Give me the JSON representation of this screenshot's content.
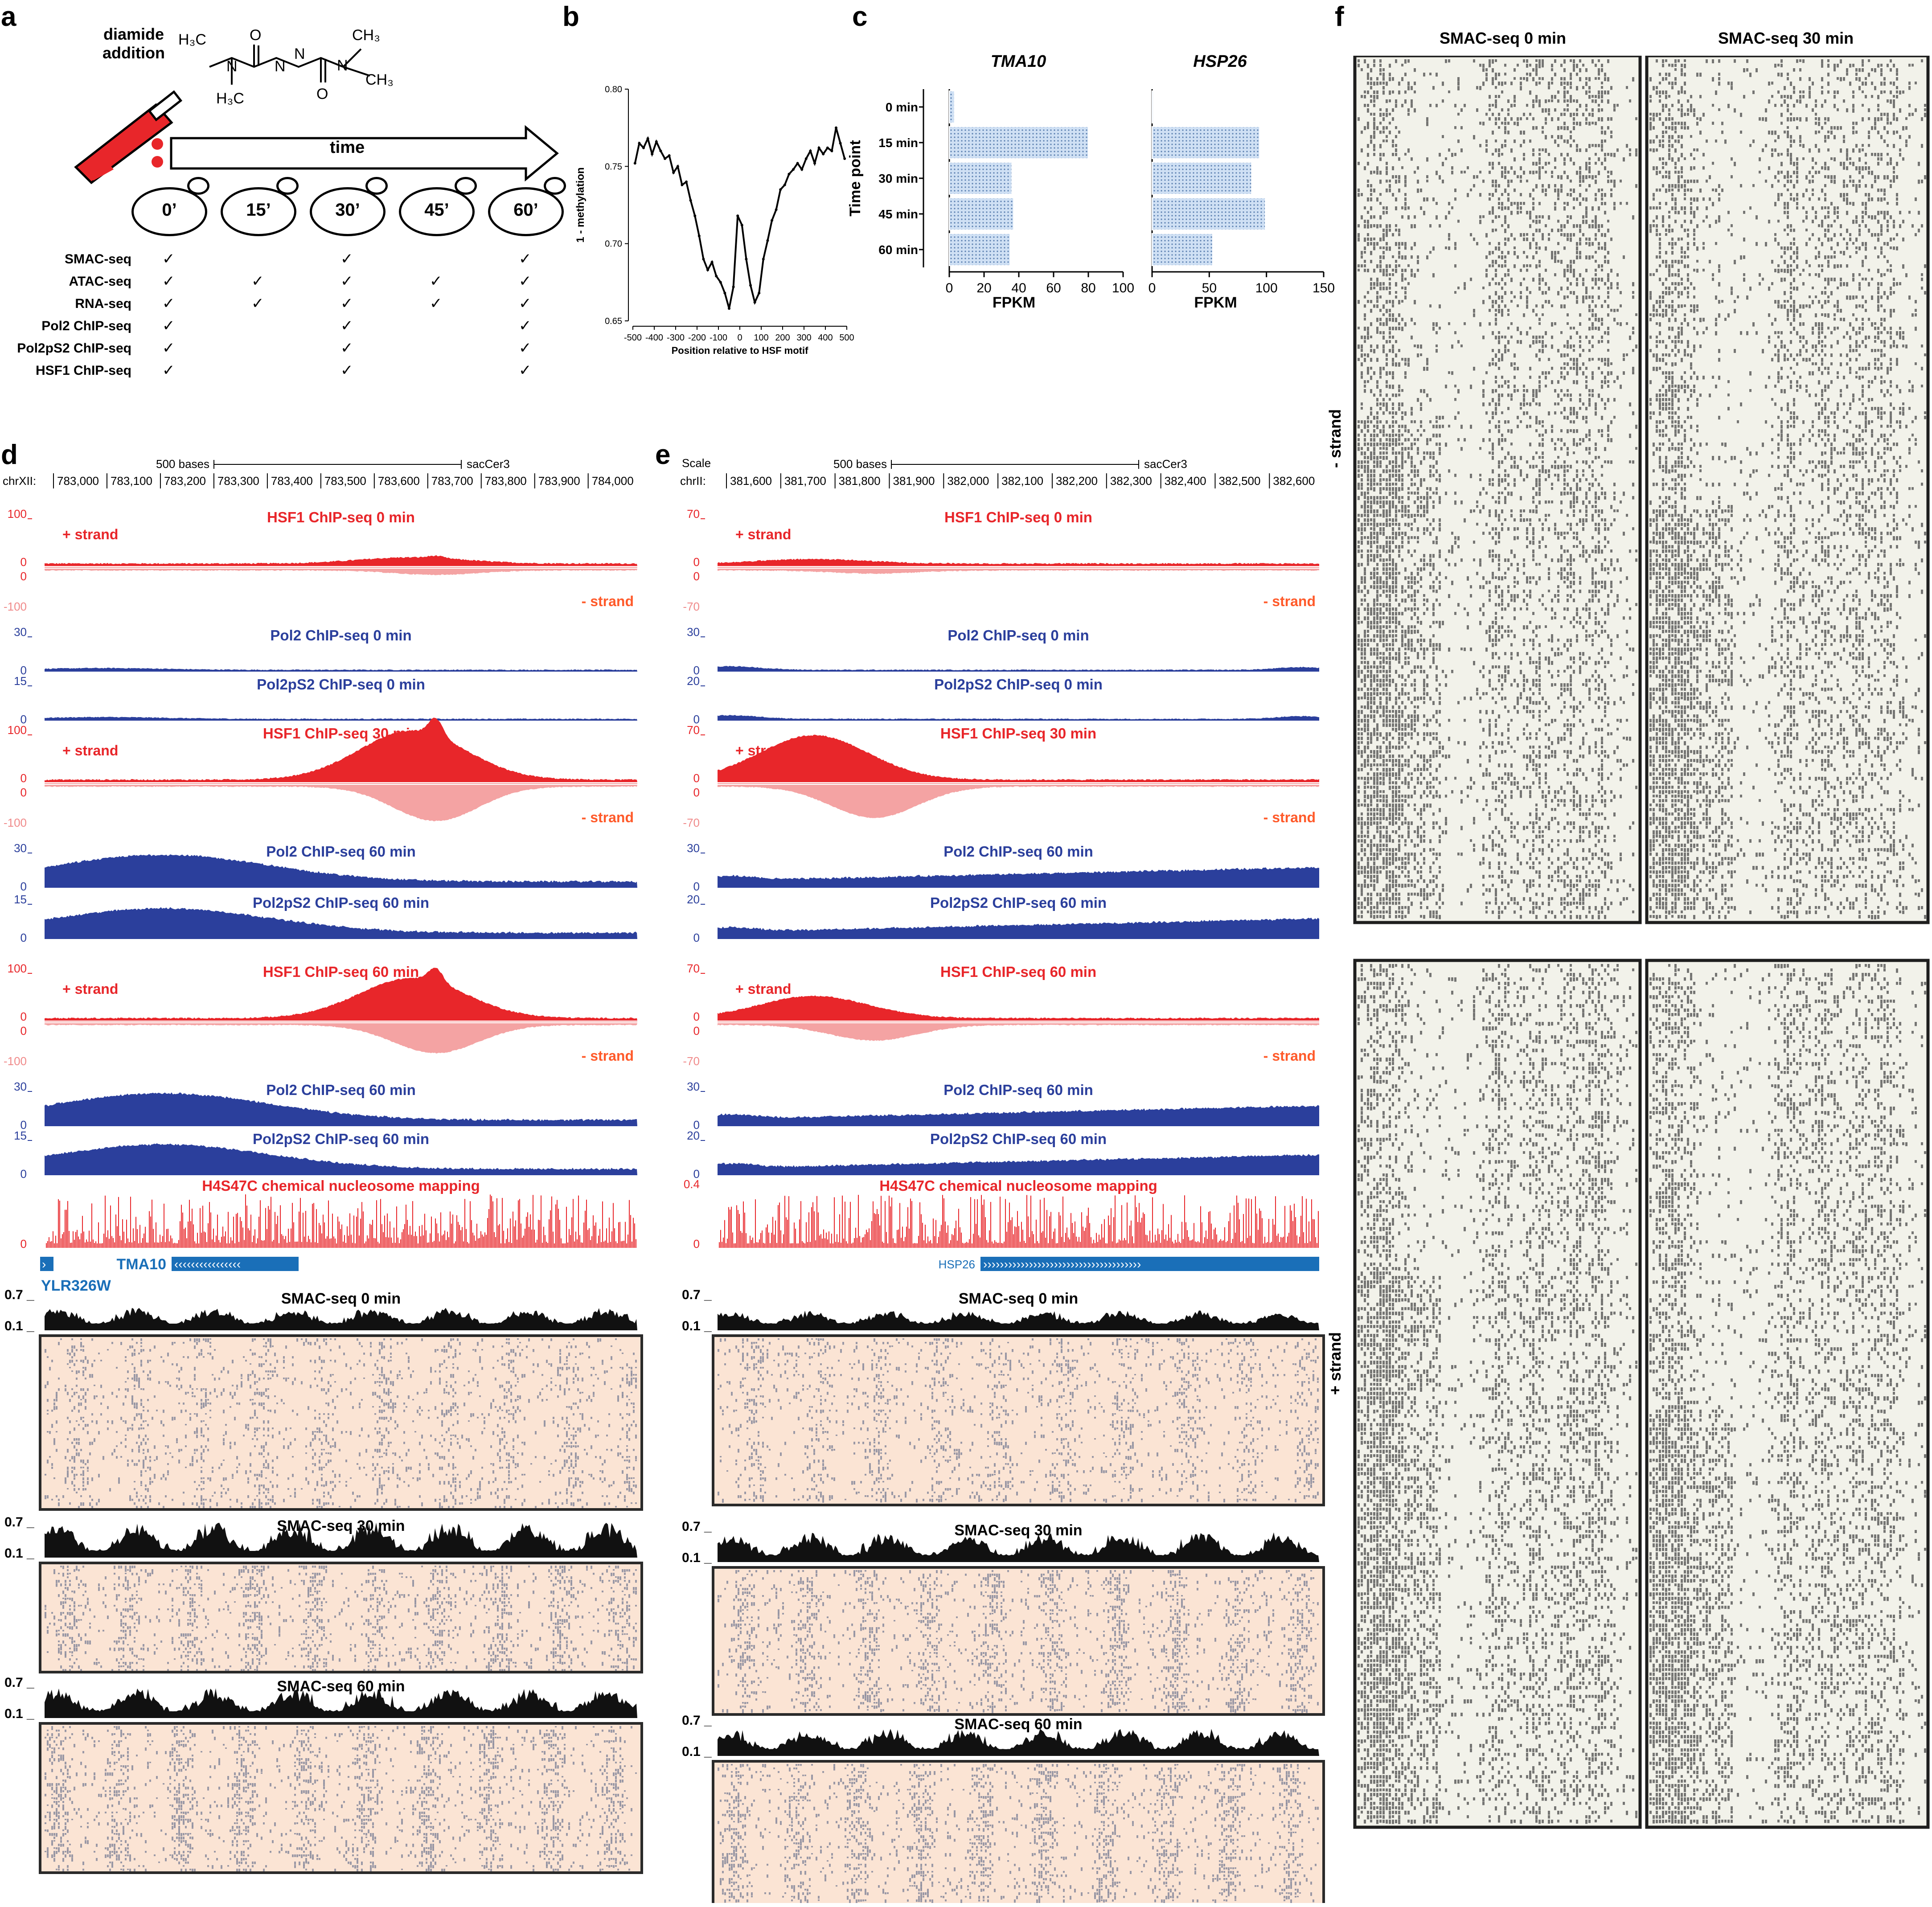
{
  "panels": {
    "a": {
      "label": "a",
      "diamide_label": "diamide\naddition",
      "time_label": "time",
      "timepoints": [
        "0’",
        "15’",
        "30’",
        "45’",
        "60’"
      ],
      "assays": [
        {
          "name": "SMAC-seq",
          "checks": [
            true,
            false,
            true,
            false,
            true
          ]
        },
        {
          "name": "ATAC-seq",
          "checks": [
            true,
            true,
            true,
            true,
            true
          ]
        },
        {
          "name": "RNA-seq",
          "checks": [
            true,
            true,
            true,
            true,
            true
          ]
        },
        {
          "name": "Pol2 ChIP-seq",
          "checks": [
            true,
            false,
            true,
            false,
            true
          ]
        },
        {
          "name": "Pol2pS2 ChIP-seq",
          "checks": [
            true,
            false,
            true,
            false,
            true
          ]
        },
        {
          "name": "HSF1 ChIP-seq",
          "checks": [
            true,
            false,
            true,
            false,
            true
          ]
        }
      ],
      "check_mark": "✓",
      "molecule_atoms": [
        "H3C",
        "N",
        "CH3",
        "O",
        "N",
        "N",
        "O",
        "N",
        "CH3",
        "CH3"
      ]
    },
    "b": {
      "label": "b"
    },
    "c": {
      "label": "c"
    },
    "d": {
      "label": "d",
      "scale_label": "500 bases",
      "assembly": "sacCer3",
      "chrom": "chrXII:",
      "coords": [
        "783,000",
        "783,100",
        "783,200",
        "783,300",
        "783,400",
        "783,500",
        "783,600",
        "783,700",
        "783,800",
        "783,900",
        "784,000"
      ],
      "tracks": [
        {
          "title": "HSF1 ChIP-seq 0 min",
          "color": "red",
          "top": "100",
          "bottom": "-100",
          "strand_plus": "+ strand",
          "strand_minus": "- strand"
        },
        {
          "title": "Pol2 ChIP-seq 0 min",
          "color": "blue",
          "top": "30"
        },
        {
          "title": "Pol2pS2 ChIP-seq 0 min",
          "color": "blue",
          "top": "15"
        },
        {
          "title": "HSF1 ChIP-seq 30 min",
          "color": "red",
          "top": "100",
          "bottom": "-100",
          "strand_plus": "+ strand",
          "strand_minus": "- strand"
        },
        {
          "title": "Pol2 ChIP-seq 60 min",
          "color": "blue",
          "top": "30"
        },
        {
          "title": "Pol2pS2 ChIP-seq 60 min",
          "color": "blue",
          "top": "15"
        },
        {
          "title": "HSF1 ChIP-seq 60 min",
          "color": "red",
          "top": "100",
          "bottom": "-100",
          "strand_plus": "+ strand",
          "strand_minus": "- strand"
        },
        {
          "title": "Pol2 ChIP-seq 60 min",
          "color": "blue",
          "top": "30"
        },
        {
          "title": "Pol2pS2 ChIP-seq 60 min",
          "color": "blue",
          "top": "15"
        }
      ],
      "nucleosome_title": "H4S47C chemical nucleosome mapping",
      "gene_main": "TMA10",
      "gene_main_arrows": "‹‹‹‹‹‹‹‹‹‹‹‹‹‹‹‹",
      "gene_other": "YLR326W",
      "smac": [
        {
          "title": "SMAC-seq 0 min",
          "top": "0.7",
          "bottom": "0.1"
        },
        {
          "title": "SMAC-seq 30 min",
          "top": "0.7",
          "bottom": "0.1"
        },
        {
          "title": "SMAC-seq 60 min",
          "top": "0.7",
          "bottom": "0.1"
        }
      ],
      "zero": "0"
    },
    "e": {
      "label": "e",
      "scale_word": "Scale",
      "scale_label": "500 bases",
      "assembly": "sacCer3",
      "chrom": "chrII:",
      "coords": [
        "381,600",
        "381,700",
        "381,800",
        "381,900",
        "382,000",
        "382,100",
        "382,200",
        "382,300",
        "382,400",
        "382,500",
        "382,600"
      ],
      "tracks": [
        {
          "title": "HSF1 ChIP-seq 0 min",
          "color": "red",
          "top": "70",
          "bottom": "-70",
          "strand_plus": "+ strand",
          "strand_minus": "- strand"
        },
        {
          "title": "Pol2 ChIP-seq 0 min",
          "color": "blue",
          "top": "30"
        },
        {
          "title": "Pol2pS2 ChIP-seq 0 min",
          "color": "blue",
          "top": "20"
        },
        {
          "title": "HSF1 ChIP-seq 30 min",
          "color": "red",
          "top": "70",
          "bottom": "-70",
          "strand_plus": "+ strand",
          "strand_minus": "- strand"
        },
        {
          "title": "Pol2 ChIP-seq 60 min",
          "color": "blue",
          "top": "30"
        },
        {
          "title": "Pol2pS2 ChIP-seq 60 min",
          "color": "blue",
          "top": "20"
        },
        {
          "title": "HSF1 ChIP-seq 60 min",
          "color": "red",
          "top": "70",
          "bottom": "-70",
          "strand_plus": "+ strand",
          "strand_minus": "- strand"
        },
        {
          "title": "Pol2 ChIP-seq 60 min",
          "color": "blue",
          "top": "30"
        },
        {
          "title": "Pol2pS2 ChIP-seq 60 min",
          "color": "blue",
          "top": "20"
        }
      ],
      "nucleosome_title": "H4S47C chemical nucleosome mapping",
      "nucleosome_top": "0.4",
      "gene_main": "HSP26",
      "gene_main_arrows": "››››››››››››››››››››››››››››››››››››››",
      "smac": [
        {
          "title": "SMAC-seq 0 min",
          "top": "0.7",
          "bottom": "0.1"
        },
        {
          "title": "SMAC-seq 30 min",
          "top": "0.7",
          "bottom": "0.1"
        },
        {
          "title": "SMAC-seq 60 min",
          "top": "0.7",
          "bottom": "0.1"
        }
      ],
      "zero": "0"
    },
    "f": {
      "label": "f",
      "col_titles": [
        "SMAC-seq 0 min",
        "SMAC-seq 30 min"
      ],
      "row_labels": [
        "- strand",
        "+ strand"
      ]
    }
  },
  "chart_data": [
    {
      "panel": "b",
      "type": "line",
      "xlabel": "Position relative to HSF motif",
      "ylabel": "1 - methylation",
      "xlim": [
        -500,
        500
      ],
      "ylim": [
        0.65,
        0.8
      ],
      "xticks": [
        "-500",
        "-400",
        "-300",
        "-200",
        "-100",
        "0",
        "100",
        "200",
        "300",
        "400",
        "500"
      ],
      "yticks": [
        "0.65",
        "0.70",
        "0.75",
        "0.80"
      ],
      "x": [
        -490,
        -470,
        -450,
        -430,
        -410,
        -390,
        -370,
        -350,
        -330,
        -310,
        -290,
        -270,
        -250,
        -230,
        -210,
        -190,
        -170,
        -150,
        -130,
        -110,
        -90,
        -70,
        -50,
        -30,
        -10,
        10,
        30,
        50,
        70,
        90,
        110,
        130,
        150,
        170,
        190,
        210,
        230,
        250,
        270,
        290,
        310,
        330,
        350,
        370,
        390,
        410,
        430,
        450,
        470,
        490
      ],
      "y": [
        0.752,
        0.765,
        0.762,
        0.768,
        0.758,
        0.766,
        0.76,
        0.755,
        0.757,
        0.746,
        0.75,
        0.738,
        0.74,
        0.728,
        0.718,
        0.705,
        0.69,
        0.683,
        0.688,
        0.679,
        0.675,
        0.668,
        0.658,
        0.672,
        0.718,
        0.712,
        0.69,
        0.673,
        0.662,
        0.668,
        0.69,
        0.702,
        0.715,
        0.722,
        0.735,
        0.738,
        0.745,
        0.748,
        0.752,
        0.748,
        0.755,
        0.76,
        0.752,
        0.762,
        0.758,
        0.762,
        0.76,
        0.775,
        0.765,
        0.755
      ]
    },
    {
      "panel": "c",
      "type": "bar",
      "orientation": "horizontal",
      "ylabel": "Time point",
      "categories": [
        "0 min",
        "15 min",
        "30 min",
        "45 min",
        "60 min"
      ],
      "subplots": [
        {
          "title": "TMA10",
          "xlabel": "FPKM",
          "xlim": [
            0,
            100
          ],
          "xticks": [
            "0",
            "20",
            "40",
            "60",
            "80",
            "100"
          ],
          "values": [
            3,
            80,
            36,
            37,
            35
          ]
        },
        {
          "title": "HSP26",
          "xlabel": "FPKM",
          "xlim": [
            0,
            150
          ],
          "xticks": [
            "0",
            "50",
            "100",
            "150"
          ],
          "values": [
            1,
            94,
            87,
            99,
            53
          ]
        }
      ]
    }
  ]
}
